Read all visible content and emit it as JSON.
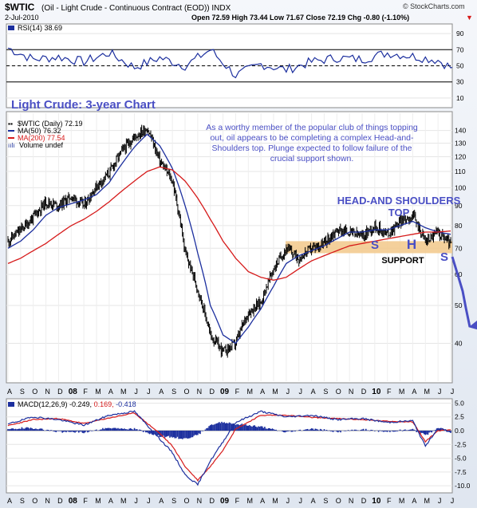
{
  "header": {
    "symbol": "$WTIC",
    "description": "(Oil - Light Crude - Continuous Contract (EOD)) INDX",
    "date": "2-Jul-2010",
    "ohlc": "Open 72.59  High 73.44  Low 71.67  Close 72.19  Chg -0.80 (-1.10%)",
    "chg_arrow": "▼",
    "brand": "© StockCharts.com"
  },
  "colors": {
    "price": "#000000",
    "ma50": "#1c2f9e",
    "ma200": "#d61a1a",
    "rsi": "#1c2f9e",
    "macd": "#1c2f9e",
    "signal": "#d61a1a",
    "histogram": "#1c2f9e",
    "annotation": "#4a4fc4",
    "support_band": "#f2c88a",
    "panel_bg": "#ffffff",
    "frame": "#eaeef5"
  },
  "chart_data": [
    {
      "type": "line",
      "panel": "RSI",
      "title": "RSI(14) 38.69",
      "ylim": [
        0,
        100
      ],
      "yticks": [
        10,
        30,
        50,
        70,
        90
      ],
      "reference_lines": [
        30,
        70
      ],
      "series": [
        {
          "name": "RSI(14)",
          "x": [
            0,
            2,
            4,
            6,
            8,
            10,
            12,
            14,
            16,
            18,
            20,
            22,
            24,
            26,
            28,
            30,
            32,
            34,
            36
          ],
          "values": [
            72,
            58,
            61,
            55,
            66,
            48,
            60,
            50,
            70,
            38,
            52,
            45,
            55,
            60,
            58,
            66,
            62,
            57,
            39
          ]
        }
      ]
    },
    {
      "type": "line",
      "panel": "Price",
      "title": "$WTIC (Daily) 72.19",
      "yscale": "log",
      "ylim": [
        32,
        155
      ],
      "yticks": [
        40,
        50,
        60,
        70,
        80,
        90,
        100,
        110,
        120,
        130,
        140
      ],
      "xlabels": [
        "A",
        "S",
        "O",
        "N",
        "D",
        "08",
        "F",
        "M",
        "A",
        "M",
        "J",
        "J",
        "A",
        "S",
        "O",
        "N",
        "D",
        "09",
        "F",
        "M",
        "A",
        "M",
        "J",
        "J",
        "A",
        "S",
        "O",
        "N",
        "D",
        "10",
        "F",
        "M",
        "A",
        "M",
        "J",
        "J"
      ],
      "series": [
        {
          "name": "$WTIC (Daily) 72.19",
          "x": [
            0,
            1,
            2,
            3,
            4,
            5,
            6,
            7,
            8,
            9,
            10,
            11,
            12,
            13,
            14,
            15,
            16,
            17,
            18,
            19,
            20,
            21,
            22,
            23,
            24,
            25,
            26,
            27,
            28,
            29,
            30,
            31,
            32,
            33,
            34,
            35
          ],
          "values": [
            73,
            78,
            84,
            92,
            90,
            95,
            90,
            101,
            109,
            124,
            135,
            142,
            117,
            104,
            68,
            55,
            42,
            38,
            40,
            48,
            51,
            62,
            70,
            66,
            70,
            72,
            78,
            77,
            75,
            80,
            76,
            82,
            85,
            73,
            77,
            72
          ]
        },
        {
          "name": "MA(50) 76.32",
          "x": [
            0,
            1,
            2,
            3,
            4,
            5,
            6,
            7,
            8,
            9,
            10,
            11,
            12,
            13,
            14,
            15,
            16,
            17,
            18,
            19,
            20,
            21,
            22,
            23,
            24,
            25,
            26,
            27,
            28,
            29,
            30,
            31,
            32,
            33,
            34,
            35
          ],
          "values": [
            70,
            73,
            78,
            85,
            89,
            91,
            93,
            96,
            103,
            115,
            127,
            137,
            128,
            112,
            90,
            68,
            50,
            42,
            40,
            44,
            49,
            56,
            64,
            67,
            69,
            71,
            74,
            77,
            77,
            78,
            78,
            80,
            82,
            79,
            77,
            76
          ]
        },
        {
          "name": "MA(200) 77.54",
          "x": [
            0,
            1,
            2,
            3,
            4,
            5,
            6,
            7,
            8,
            9,
            10,
            11,
            12,
            13,
            14,
            15,
            16,
            17,
            18,
            19,
            20,
            21,
            22,
            23,
            24,
            25,
            26,
            27,
            28,
            29,
            30,
            31,
            32,
            33,
            34,
            35
          ],
          "values": [
            64,
            66,
            69,
            72,
            76,
            80,
            83,
            87,
            92,
            98,
            104,
            110,
            113,
            111,
            104,
            94,
            83,
            73,
            66,
            61,
            59,
            58,
            59,
            62,
            65,
            67,
            69,
            71,
            72,
            73,
            74,
            75,
            76,
            77,
            77,
            77.5
          ]
        }
      ],
      "annotations": {
        "chart_label": "Light Crude: 3-year Chart",
        "commentary": [
          "As a worthy member of the popular club of things topping",
          "out, oil appears to be completing a complex Head-and-",
          "Shoulders top. Plunge expected to follow failure of the",
          "crucial support shown."
        ],
        "pattern_title": [
          "HEAD-AND SHOULDERS",
          "TOP"
        ],
        "left_shoulder": "S",
        "head": "H",
        "right_shoulder": "S",
        "support_label": "SUPPORT",
        "support_range": [
          68,
          73
        ],
        "volume_legend": "Volume undef"
      }
    },
    {
      "type": "line",
      "panel": "MACD",
      "title": "MACD(12,26,9) -0.249, 0.169, -0.418",
      "legend_values": [
        "MACD(12,26,9) -0.249,",
        "0.169,",
        "-0.418"
      ],
      "ylim": [
        -11,
        5.5
      ],
      "yticks": [
        5.0,
        2.5,
        0.0,
        -2.5,
        -5.0,
        -7.5,
        -10.0
      ],
      "series": [
        {
          "name": "MACD",
          "x": [
            0,
            2,
            4,
            6,
            8,
            10,
            12,
            13,
            14,
            15,
            16,
            17,
            18,
            20,
            22,
            24,
            26,
            28,
            30,
            32,
            33,
            34,
            35
          ],
          "values": [
            1.2,
            2.5,
            2.0,
            1.0,
            2.8,
            3.5,
            -1.5,
            -4.0,
            -8.0,
            -9.8,
            -5.5,
            -2.0,
            1.5,
            3.5,
            2.5,
            2.8,
            2.0,
            2.2,
            1.5,
            1.8,
            -2.8,
            0.5,
            -0.249
          ]
        },
        {
          "name": "Signal",
          "x": [
            0,
            2,
            4,
            6,
            8,
            10,
            12,
            13,
            14,
            15,
            16,
            17,
            18,
            20,
            22,
            24,
            26,
            28,
            30,
            32,
            33,
            34,
            35
          ],
          "values": [
            0.9,
            2.0,
            2.2,
            1.3,
            2.3,
            3.2,
            -0.5,
            -2.8,
            -6.5,
            -9.0,
            -6.5,
            -3.5,
            0.3,
            2.8,
            2.8,
            2.4,
            2.2,
            2.0,
            1.7,
            1.6,
            -2.0,
            0.0,
            0.169
          ]
        }
      ]
    }
  ]
}
